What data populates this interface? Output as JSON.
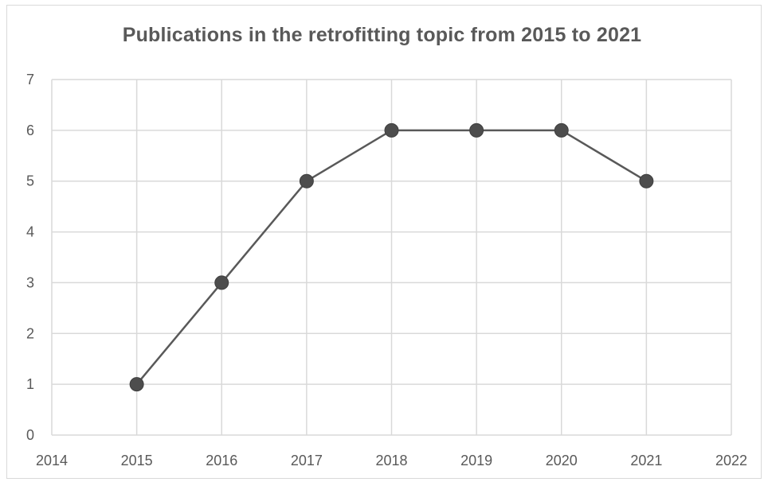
{
  "chart_data": {
    "type": "scatter",
    "title": "Publications in the retrofitting topic from 2015 to 2021",
    "xlabel": "",
    "ylabel": "",
    "x": [
      2015,
      2016,
      2017,
      2018,
      2019,
      2020,
      2021
    ],
    "y": [
      1,
      3,
      5,
      6,
      6,
      6,
      5
    ],
    "xlim": [
      2014,
      2022
    ],
    "ylim": [
      0,
      7
    ],
    "xticks": [
      2014,
      2015,
      2016,
      2017,
      2018,
      2019,
      2020,
      2021,
      2022
    ],
    "yticks": [
      0,
      1,
      2,
      3,
      4,
      5,
      6,
      7
    ],
    "grid": true,
    "lines_connecting_points": true,
    "legend": "none",
    "colors": {
      "line": "#595959",
      "marker": "#4d4d4d",
      "grid": "#d9d9d9",
      "text": "#595959"
    }
  }
}
